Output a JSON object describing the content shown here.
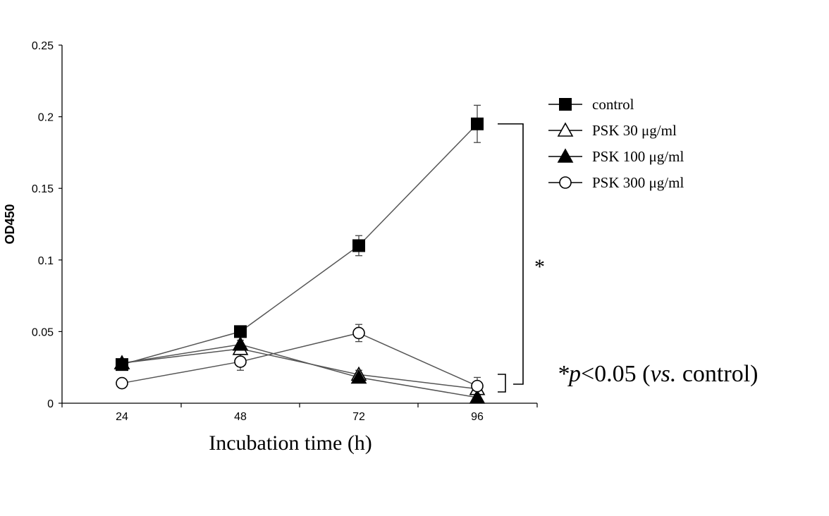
{
  "chart_data": {
    "type": "line",
    "xlabel": "Incubation time (h)",
    "ylabel": "OD450",
    "categories": [
      "24",
      "48",
      "72",
      "96"
    ],
    "x": [
      24,
      48,
      72,
      96
    ],
    "ylim": [
      0,
      0.25
    ],
    "yticks": [
      0,
      0.05,
      0.1,
      0.15,
      0.2,
      0.25
    ],
    "ytick_labels": [
      "0",
      "0.05",
      "0.1",
      "0.15",
      "0.2",
      "0.25"
    ],
    "grid": false,
    "legend_position": "right",
    "series": [
      {
        "name": "control",
        "marker": "filled-square",
        "values": [
          0.027,
          0.05,
          0.11,
          0.195
        ],
        "errors": [
          0.002,
          0.003,
          0.007,
          0.013
        ]
      },
      {
        "name": "PSK 30 μg/ml",
        "marker": "open-triangle",
        "values": [
          0.028,
          0.038,
          0.02,
          0.01
        ],
        "errors": [
          0.002,
          0.003,
          0.003,
          0.002
        ]
      },
      {
        "name": "PSK 100 μg/ml",
        "marker": "filled-triangle",
        "values": [
          0.028,
          0.041,
          0.018,
          0.004
        ],
        "errors": [
          0.002,
          0.003,
          0.002,
          0.001
        ]
      },
      {
        "name": "PSK 300 μg/ml",
        "marker": "open-circle",
        "values": [
          0.014,
          0.029,
          0.049,
          0.012
        ],
        "errors": [
          0.001,
          0.006,
          0.006,
          0.006
        ]
      }
    ],
    "annotations": {
      "significance_marker": "*",
      "significance_note": {
        "star": "*",
        "p_italic": "p",
        "threshold": "<0.05 (",
        "vs_italic": "vs.",
        "rest": " control)"
      }
    }
  }
}
